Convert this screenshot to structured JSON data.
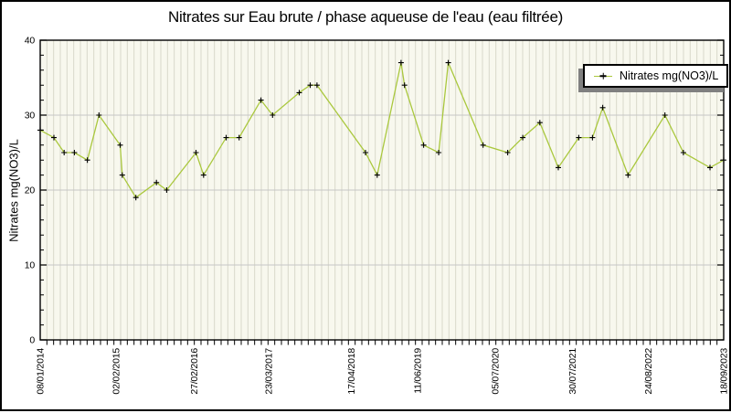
{
  "page": {
    "background": "#ffffff",
    "border_color": "#000000"
  },
  "style": {
    "plot_bg": "#f8f8ee",
    "stripe_color": "#d9d9cb",
    "hgrid_color": "#c6c6c6",
    "axis_color": "#000000",
    "legend_shadow": "#808080"
  },
  "chart_data": {
    "type": "line",
    "title": "Nitrates sur Eau brute / phase aqueuse de l'eau (eau filtrée)",
    "ylabel": "Nitrates mg(NO3)/L",
    "xlabel": "",
    "ylim": [
      0,
      40
    ],
    "y_major_ticks": [
      0,
      10,
      20,
      30,
      40
    ],
    "y_minor_tick_step": 2,
    "grid": {
      "horizontal_major": true,
      "vertical_fine_stripes": true,
      "stripe_intervals": 102
    },
    "legend": {
      "position": "top-right",
      "label": "Nitrates mg(NO3)/L"
    },
    "x_ticks": [
      {
        "label": "08/01/2014",
        "f": 0.0
      },
      {
        "label": "02/02/2015",
        "f": 0.111
      },
      {
        "label": "27/02/2016",
        "f": 0.225
      },
      {
        "label": "23/03/2017",
        "f": 0.334
      },
      {
        "label": "17/04/2018",
        "f": 0.455
      },
      {
        "label": "11/06/2019",
        "f": 0.552
      },
      {
        "label": "05/07/2020",
        "f": 0.666
      },
      {
        "label": "30/07/2021",
        "f": 0.779
      },
      {
        "label": "24/08/2022",
        "f": 0.89
      },
      {
        "label": "18/09/2023",
        "f": 1.0
      }
    ],
    "series": [
      {
        "name": "Nitrates mg(NO3)/L",
        "line_color": "#aac83e",
        "marker": "plus",
        "marker_color": "#000000",
        "points": [
          {
            "f": 0.0,
            "v": 28
          },
          {
            "f": 0.02,
            "v": 27
          },
          {
            "f": 0.035,
            "v": 25
          },
          {
            "f": 0.05,
            "v": 25
          },
          {
            "f": 0.069,
            "v": 24
          },
          {
            "f": 0.086,
            "v": 30
          },
          {
            "f": 0.117,
            "v": 26
          },
          {
            "f": 0.12,
            "v": 22
          },
          {
            "f": 0.14,
            "v": 19
          },
          {
            "f": 0.17,
            "v": 21
          },
          {
            "f": 0.185,
            "v": 20
          },
          {
            "f": 0.228,
            "v": 25
          },
          {
            "f": 0.239,
            "v": 22
          },
          {
            "f": 0.272,
            "v": 27
          },
          {
            "f": 0.291,
            "v": 27
          },
          {
            "f": 0.323,
            "v": 32
          },
          {
            "f": 0.34,
            "v": 30
          },
          {
            "f": 0.379,
            "v": 33
          },
          {
            "f": 0.395,
            "v": 34
          },
          {
            "f": 0.405,
            "v": 34
          },
          {
            "f": 0.476,
            "v": 25
          },
          {
            "f": 0.493,
            "v": 22
          },
          {
            "f": 0.528,
            "v": 37
          },
          {
            "f": 0.533,
            "v": 34
          },
          {
            "f": 0.561,
            "v": 26
          },
          {
            "f": 0.583,
            "v": 25
          },
          {
            "f": 0.597,
            "v": 37
          },
          {
            "f": 0.648,
            "v": 26
          },
          {
            "f": 0.684,
            "v": 25
          },
          {
            "f": 0.706,
            "v": 27
          },
          {
            "f": 0.731,
            "v": 29
          },
          {
            "f": 0.758,
            "v": 23
          },
          {
            "f": 0.788,
            "v": 27
          },
          {
            "f": 0.808,
            "v": 27
          },
          {
            "f": 0.823,
            "v": 31
          },
          {
            "f": 0.86,
            "v": 22
          },
          {
            "f": 0.914,
            "v": 30
          },
          {
            "f": 0.941,
            "v": 25
          },
          {
            "f": 0.98,
            "v": 23
          },
          {
            "f": 1.0,
            "v": 24
          }
        ]
      }
    ]
  }
}
